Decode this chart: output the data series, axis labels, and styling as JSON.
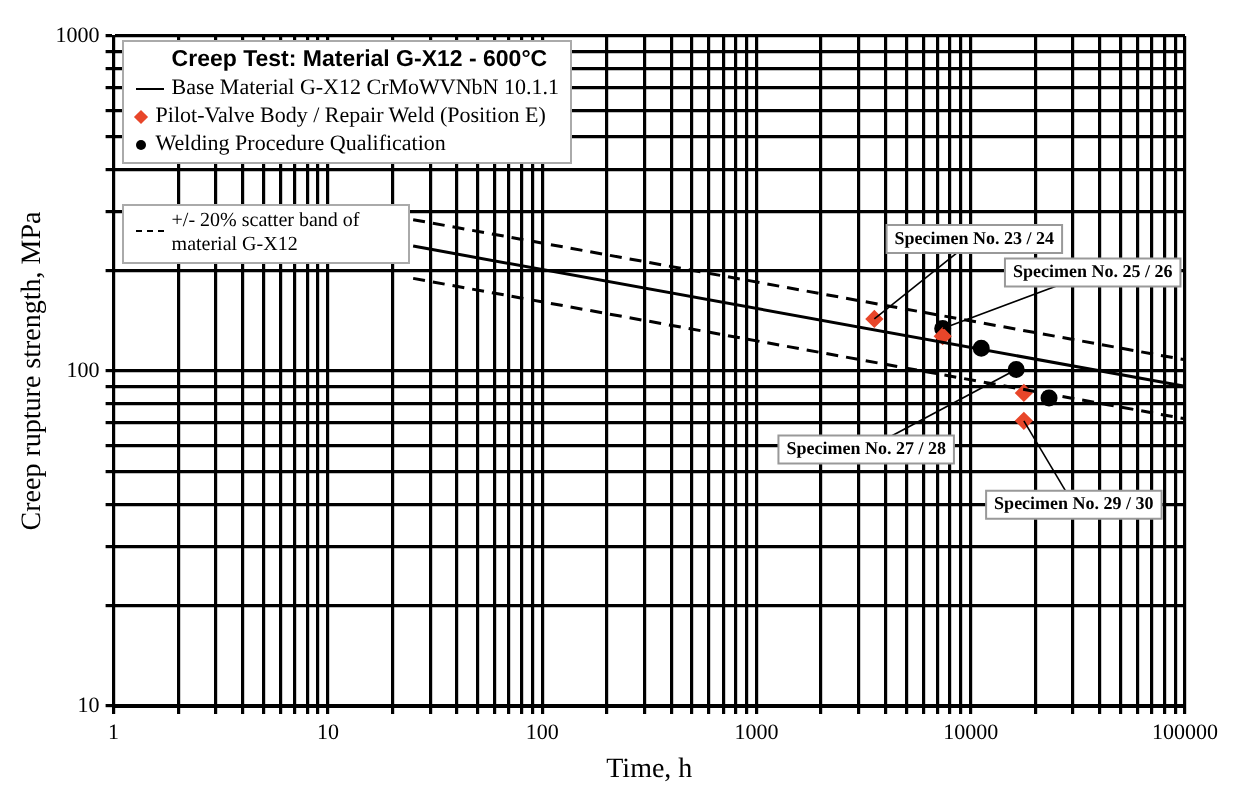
{
  "chart_data": {
    "type": "line",
    "title": "Creep Test:  Material  G-X12  -  600°C",
    "xlabel": "Time, h",
    "ylabel": "Creep rupture strength, MPa",
    "log": "xy",
    "grid": true,
    "legend": "top left",
    "xlim": [
      1,
      100000
    ],
    "ylim": [
      10,
      1000
    ],
    "xticks": [
      1,
      {
        "value": 2,
        "label": null
      },
      {
        "value": 3,
        "label": null
      },
      {
        "value": 4,
        "label": null
      },
      {
        "value": 5,
        "label": null
      },
      {
        "value": 6,
        "label": null
      },
      {
        "value": 7,
        "label": null
      },
      {
        "value": 8,
        "label": null
      },
      {
        "value": 9,
        "label": null
      },
      10,
      {
        "value": 20,
        "label": null
      },
      {
        "value": 30,
        "label": null
      },
      {
        "value": 40,
        "label": null
      },
      {
        "value": 50,
        "label": null
      },
      {
        "value": 60,
        "label": null
      },
      {
        "value": 70,
        "label": null
      },
      {
        "value": 80,
        "label": null
      },
      {
        "value": 90,
        "label": null
      },
      100,
      {
        "value": 200,
        "label": null
      },
      {
        "value": 300,
        "label": null
      },
      {
        "value": 400,
        "label": null
      },
      {
        "value": 500,
        "label": null
      },
      {
        "value": 600,
        "label": null
      },
      {
        "value": 700,
        "label": null
      },
      {
        "value": 800,
        "label": null
      },
      {
        "value": 900,
        "label": null
      },
      1000,
      {
        "value": 2000,
        "label": null
      },
      {
        "value": 3000,
        "label": null
      },
      {
        "value": 4000,
        "label": null
      },
      {
        "value": 5000,
        "label": null
      },
      {
        "value": 6000,
        "label": null
      },
      {
        "value": 7000,
        "label": null
      },
      {
        "value": 8000,
        "label": null
      },
      {
        "value": 9000,
        "label": null
      },
      10000,
      {
        "value": 20000,
        "label": null
      },
      {
        "value": 30000,
        "label": null
      },
      {
        "value": 40000,
        "label": null
      },
      {
        "value": 50000,
        "label": null
      },
      {
        "value": 60000,
        "label": null
      },
      {
        "value": 70000,
        "label": null
      },
      {
        "value": 80000,
        "label": null
      },
      {
        "value": 90000,
        "label": null
      },
      100000
    ],
    "yticks": [
      10,
      {
        "value": 20,
        "label": null
      },
      {
        "value": 30,
        "label": null
      },
      {
        "value": 40,
        "label": null
      },
      {
        "value": 50,
        "label": null
      },
      {
        "value": 60,
        "label": null
      },
      {
        "value": 70,
        "label": null
      },
      {
        "value": 80,
        "label": null
      },
      {
        "value": 90,
        "label": null
      },
      100,
      {
        "value": 200,
        "label": null
      },
      {
        "value": 300,
        "label": null
      },
      {
        "value": 400,
        "label": null
      },
      {
        "value": 500,
        "label": null
      },
      {
        "value": 600,
        "label": null
      },
      {
        "value": 700,
        "label": null
      },
      {
        "value": 800,
        "label": null
      },
      {
        "value": 900,
        "label": null
      },
      1000
    ],
    "series": [
      {
        "name": "Base Material G-X12 CrMoWVNbN 10.1.1",
        "color": "#000000",
        "x": [
          25,
          100000
        ],
        "values": [
          236,
          90
        ],
        "line_style": "solid",
        "marker": "none"
      },
      {
        "name": "+/- 20% scatter band of material G-X12",
        "color": "#000000",
        "x": [
          25,
          100000
        ],
        "values": [
          283,
          108
        ],
        "line_style": "dashed",
        "marker": "none"
      },
      {
        "color": "#000000",
        "x": [
          25,
          100000
        ],
        "values": [
          189,
          72
        ],
        "line_style": "dashed",
        "marker": "none"
      },
      {
        "name": "Pilot-Valve Body / Repair Weld (Position E)",
        "type": "scatter",
        "color": "#e8462a",
        "x": [
          3550,
          7400,
          17700,
          17700
        ],
        "values": [
          143,
          127,
          86,
          71
        ],
        "marker": "diamond"
      },
      {
        "name": "Welding Procedure Qualification",
        "type": "scatter",
        "color": "#000000",
        "x": [
          7400,
          11200,
          16300,
          23200
        ],
        "values": [
          134,
          117,
          101,
          83
        ],
        "marker": "circle"
      }
    ],
    "annotations": [
      {
        "text": "Specimen No. 23 / 24",
        "x": 3550,
        "y": 143
      },
      {
        "text": "Specimen No. 25 / 26",
        "x": 7400,
        "y": 134
      },
      {
        "text": "Specimen No. 27 / 28",
        "x": 16300,
        "y": 101
      },
      {
        "text": "Specimen No. 29 / 30",
        "x": 17700,
        "y": 71
      }
    ]
  }
}
